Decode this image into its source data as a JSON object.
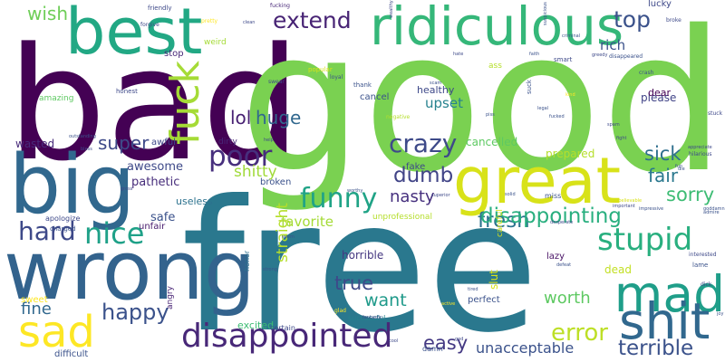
{
  "palette": {
    "deep_purple": "#440154",
    "purple": "#482878",
    "indigo": "#3e4989",
    "blue": "#31688e",
    "teal": "#26828e",
    "teal_green": "#1f9e89",
    "green": "#35b779",
    "lime": "#6ece58",
    "light_green": "#7ad151",
    "yellow_green": "#b5de2b",
    "yellow": "#fde725"
  },
  "words": [
    {
      "text": "bad",
      "color": "#440154"
    },
    {
      "text": "good",
      "color": "#7ad151"
    },
    {
      "text": "free",
      "color": "#2a788e"
    },
    {
      "text": "best",
      "color": "#22a884"
    },
    {
      "text": "ridiculous",
      "color": "#35b779"
    },
    {
      "text": "big",
      "color": "#31688e"
    },
    {
      "text": "wrong",
      "color": "#33638d"
    },
    {
      "text": "great",
      "color": "#d8e219"
    },
    {
      "text": "mad",
      "color": "#1f9e89"
    },
    {
      "text": "shit",
      "color": "#31688e"
    },
    {
      "text": "sad",
      "color": "#fde725"
    },
    {
      "text": "disappointed",
      "color": "#482878"
    },
    {
      "text": "fuck",
      "color": "#a5db36"
    },
    {
      "text": "funny",
      "color": "#20a386"
    },
    {
      "text": "crazy",
      "color": "#3e4a89"
    },
    {
      "text": "stupid",
      "color": "#29af7f"
    },
    {
      "text": "poor",
      "color": "#472f7d"
    },
    {
      "text": "extend",
      "color": "#482475"
    },
    {
      "text": "top",
      "color": "#3b528b"
    },
    {
      "text": "nice",
      "color": "#1fa188"
    },
    {
      "text": "hard",
      "color": "#3e4989"
    },
    {
      "text": "fresh",
      "color": "#2c728e"
    },
    {
      "text": "dumb",
      "color": "#414487"
    },
    {
      "text": "error",
      "color": "#bddf26"
    },
    {
      "text": "terrible",
      "color": "#3b528b"
    },
    {
      "text": "happy",
      "color": "#3b528b"
    },
    {
      "text": "disappointing",
      "color": "#29af7f"
    },
    {
      "text": "huge",
      "color": "#31688e"
    },
    {
      "text": "super",
      "color": "#3e4a89"
    },
    {
      "text": "sick",
      "color": "#2e6f8e"
    },
    {
      "text": "sorry",
      "color": "#3dbc74"
    },
    {
      "text": "fair",
      "color": "#2a788e"
    },
    {
      "text": "lol",
      "color": "#482173"
    },
    {
      "text": "wish",
      "color": "#6ece58"
    },
    {
      "text": "easy",
      "color": "#443983"
    },
    {
      "text": "true",
      "color": "#3e4989"
    },
    {
      "text": "want",
      "color": "#1f9a8a"
    },
    {
      "text": "worth",
      "color": "#5ec962"
    },
    {
      "text": "nasty",
      "color": "#46307e"
    },
    {
      "text": "fine",
      "color": "#31688e"
    },
    {
      "text": "shitty",
      "color": "#a0da39"
    },
    {
      "text": "straight",
      "color": "#b5de2b"
    },
    {
      "text": "favorite",
      "color": "#a5db36"
    },
    {
      "text": "unacceptable",
      "color": "#3b528b"
    },
    {
      "text": "rich",
      "color": "#3b528b"
    },
    {
      "text": "upset",
      "color": "#26828e"
    },
    {
      "text": "healthy",
      "color": "#3e4989"
    },
    {
      "text": "please",
      "color": "#414487"
    },
    {
      "text": "cancelled",
      "color": "#5ec962"
    },
    {
      "text": "prepared",
      "color": "#b5de2b"
    },
    {
      "text": "awesome",
      "color": "#3e4989"
    },
    {
      "text": "pathetic",
      "color": "#472d7b"
    },
    {
      "text": "safe",
      "color": "#3b528b"
    },
    {
      "text": "unfair",
      "color": "#481b6d"
    },
    {
      "text": "wasted",
      "color": "#472a7a"
    },
    {
      "text": "awful",
      "color": "#3e4989"
    },
    {
      "text": "horrible",
      "color": "#453781"
    },
    {
      "text": "perfect",
      "color": "#3b528b"
    },
    {
      "text": "lazy",
      "color": "#471164"
    },
    {
      "text": "dead",
      "color": "#c2df23"
    },
    {
      "text": "slut",
      "color": "#d8e219"
    },
    {
      "text": "broken",
      "color": "#3b528b"
    },
    {
      "text": "useless",
      "color": "#2c728e"
    },
    {
      "text": "excited",
      "color": "#3dbc74"
    },
    {
      "text": "fake",
      "color": "#3e4989"
    },
    {
      "text": "dear",
      "color": "#440154"
    },
    {
      "text": "cancel",
      "color": "#3b528b"
    },
    {
      "text": "stop",
      "color": "#482878"
    },
    {
      "text": "weird",
      "color": "#a5db36"
    },
    {
      "text": "dirty",
      "color": "#482878"
    },
    {
      "text": "miss",
      "color": "#3b528b"
    },
    {
      "text": "lucky",
      "color": "#3e4989"
    },
    {
      "text": "ass",
      "color": "#b5de2b"
    },
    {
      "text": "angry",
      "color": "#482475"
    },
    {
      "text": "certain",
      "color": "#3e4989"
    },
    {
      "text": "damn",
      "color": "#3b528b"
    },
    {
      "text": "successful",
      "color": "#26828e"
    },
    {
      "text": "difficult",
      "color": "#3b528b"
    },
    {
      "text": "sweet",
      "color": "#fde725"
    },
    {
      "text": "honor",
      "color": "#2c728e"
    },
    {
      "text": "careful",
      "color": "#d8e219"
    },
    {
      "text": "unprofessional",
      "color": "#b5de2b"
    },
    {
      "text": "apologize",
      "color": "#3e4989"
    },
    {
      "text": "charged",
      "color": "#3b528b"
    },
    {
      "text": "amazing",
      "color": "#5ec962"
    },
    {
      "text": "honest",
      "color": "#3e4989"
    },
    {
      "text": "friendly",
      "color": "#3e4989"
    },
    {
      "text": "fucking",
      "color": "#482878"
    },
    {
      "text": "pretty",
      "color": "#fde725"
    },
    {
      "text": "forgive",
      "color": "#3e4989"
    },
    {
      "text": "thank",
      "color": "#3b528b"
    },
    {
      "text": "popular",
      "color": "#d8e219"
    },
    {
      "text": "swear",
      "color": "#3e4989"
    },
    {
      "text": "loyal",
      "color": "#3b528b"
    },
    {
      "text": "negative",
      "color": "#b5de2b"
    },
    {
      "text": "smart",
      "color": "#3e4989"
    },
    {
      "text": "broke",
      "color": "#3e4989"
    },
    {
      "text": "crash",
      "color": "#3b528b"
    },
    {
      "text": "disappeared",
      "color": "#3b528b"
    },
    {
      "text": "suck",
      "color": "#3b528b"
    },
    {
      "text": "stuck",
      "color": "#3e4989"
    },
    {
      "text": "hilarious",
      "color": "#3e4989"
    },
    {
      "text": "interested",
      "color": "#3e4989"
    },
    {
      "text": "lame",
      "color": "#3b528b"
    },
    {
      "text": "dick",
      "color": "#3e4989"
    },
    {
      "text": "fight",
      "color": "#3e4989"
    },
    {
      "text": "goddamn",
      "color": "#3b528b"
    },
    {
      "text": "help",
      "color": "#3e4989"
    },
    {
      "text": "warm",
      "color": "#3b528b"
    },
    {
      "text": "superior",
      "color": "#3e4989"
    },
    {
      "text": "worthy",
      "color": "#3b528b"
    },
    {
      "text": "desperate",
      "color": "#3e4989"
    },
    {
      "text": "glad",
      "color": "#fde725"
    },
    {
      "text": "greedy",
      "color": "#3e4989"
    },
    {
      "text": "kind",
      "color": "#fde725"
    },
    {
      "text": "clean",
      "color": "#3e4989"
    },
    {
      "text": "legal",
      "color": "#3b528b"
    },
    {
      "text": "fucked",
      "color": "#3b528b"
    },
    {
      "text": "scam",
      "color": "#3b528b"
    },
    {
      "text": "piss",
      "color": "#3b528b"
    },
    {
      "text": "strong",
      "color": "#3b528b"
    },
    {
      "text": "fantastic",
      "color": "#3e4989"
    },
    {
      "text": "active",
      "color": "#fde725"
    },
    {
      "text": "wealthy",
      "color": "#3e4989"
    },
    {
      "text": "tired",
      "color": "#3b528b"
    },
    {
      "text": "gross",
      "color": "#3e4989"
    },
    {
      "text": "solid",
      "color": "#3b528b"
    },
    {
      "text": "bless",
      "color": "#3e4989"
    },
    {
      "text": "faith",
      "color": "#3b528b"
    },
    {
      "text": "impressive",
      "color": "#3b528b"
    },
    {
      "text": "spam",
      "color": "#3e4989"
    },
    {
      "text": "defeat",
      "color": "#3b528b"
    },
    {
      "text": "hate",
      "color": "#3e4989"
    },
    {
      "text": "joy",
      "color": "#3b528b"
    },
    {
      "text": "cool",
      "color": "#3e4989"
    },
    {
      "text": "fun",
      "color": "#3b528b"
    },
    {
      "text": "god",
      "color": "#3e4989"
    },
    {
      "text": "die",
      "color": "#3b528b"
    },
    {
      "text": "unbelievable",
      "color": "#d8e219"
    },
    {
      "text": "appreciate",
      "color": "#3e4989"
    },
    {
      "text": "criminal",
      "color": "#3b528b"
    },
    {
      "text": "suspicious",
      "color": "#3b528b"
    },
    {
      "text": "outstanding",
      "color": "#3b528b"
    },
    {
      "text": "important",
      "color": "#3e4989"
    },
    {
      "text": "admire",
      "color": "#3b528b"
    }
  ]
}
